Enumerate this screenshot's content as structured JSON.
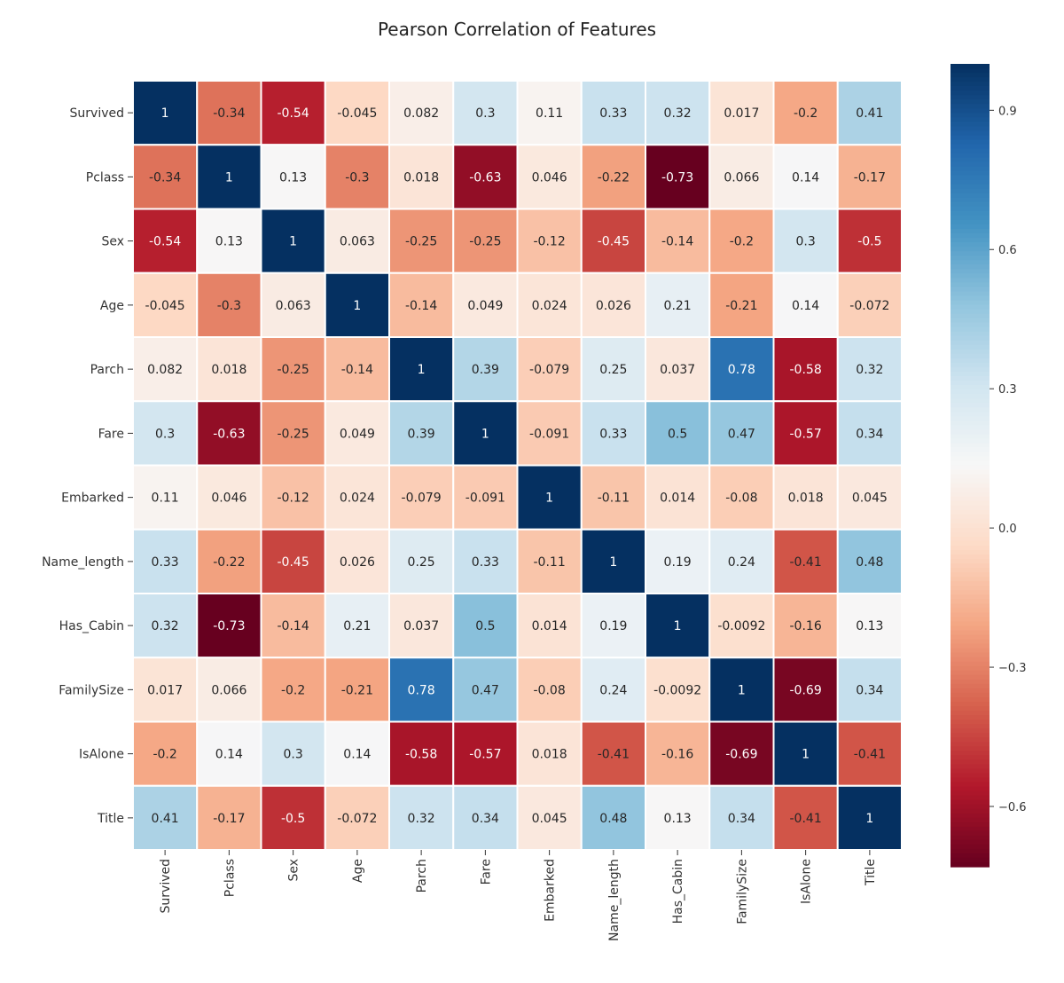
{
  "chart_data": {
    "type": "heatmap",
    "title": "Pearson Correlation of Features",
    "colormap": "RdBu",
    "vmin": -0.73,
    "vmax": 1.0,
    "annotated": true,
    "legend": "colorbar right",
    "colorbar_ticks": [
      "0.9",
      "0.6",
      "0.3",
      "0.0",
      "−0.3",
      "−0.6"
    ],
    "colorbar_tick_values": [
      0.9,
      0.6,
      0.3,
      0.0,
      -0.3,
      -0.6
    ],
    "labels": [
      "Survived",
      "Pclass",
      "Sex",
      "Age",
      "Parch",
      "Fare",
      "Embarked",
      "Name_length",
      "Has_Cabin",
      "FamilySize",
      "IsAlone",
      "Title"
    ],
    "values": [
      [
        "1",
        "-0.34",
        "-0.54",
        "-0.045",
        "0.082",
        "0.3",
        "0.11",
        "0.33",
        "0.32",
        "0.017",
        "-0.2",
        "0.41"
      ],
      [
        "-0.34",
        "1",
        "0.13",
        "-0.3",
        "0.018",
        "-0.63",
        "0.046",
        "-0.22",
        "-0.73",
        "0.066",
        "0.14",
        "-0.17"
      ],
      [
        "-0.54",
        "0.13",
        "1",
        "0.063",
        "-0.25",
        "-0.25",
        "-0.12",
        "-0.45",
        "-0.14",
        "-0.2",
        "0.3",
        "-0.5"
      ],
      [
        "-0.045",
        "-0.3",
        "0.063",
        "1",
        "-0.14",
        "0.049",
        "0.024",
        "0.026",
        "0.21",
        "-0.21",
        "0.14",
        "-0.072"
      ],
      [
        "0.082",
        "0.018",
        "-0.25",
        "-0.14",
        "1",
        "0.39",
        "-0.079",
        "0.25",
        "0.037",
        "0.78",
        "-0.58",
        "0.32"
      ],
      [
        "0.3",
        "-0.63",
        "-0.25",
        "0.049",
        "0.39",
        "1",
        "-0.091",
        "0.33",
        "0.5",
        "0.47",
        "-0.57",
        "0.34"
      ],
      [
        "0.11",
        "0.046",
        "-0.12",
        "0.024",
        "-0.079",
        "-0.091",
        "1",
        "-0.11",
        "0.014",
        "-0.08",
        "0.018",
        "0.045"
      ],
      [
        "0.33",
        "-0.22",
        "-0.45",
        "0.026",
        "0.25",
        "0.33",
        "-0.11",
        "1",
        "0.19",
        "0.24",
        "-0.41",
        "0.48"
      ],
      [
        "0.32",
        "-0.73",
        "-0.14",
        "0.21",
        "0.037",
        "0.5",
        "0.014",
        "0.19",
        "1",
        "-0.0092",
        "-0.16",
        "0.13"
      ],
      [
        "0.017",
        "0.066",
        "-0.2",
        "-0.21",
        "0.78",
        "0.47",
        "-0.08",
        "0.24",
        "-0.0092",
        "1",
        "-0.69",
        "0.34"
      ],
      [
        "-0.2",
        "0.14",
        "0.3",
        "0.14",
        "-0.58",
        "-0.57",
        "0.018",
        "-0.41",
        "-0.16",
        "-0.69",
        "1",
        "-0.41"
      ],
      [
        "0.41",
        "-0.17",
        "-0.5",
        "-0.072",
        "0.32",
        "0.34",
        "0.045",
        "0.48",
        "0.13",
        "0.34",
        "-0.41",
        "1"
      ]
    ]
  }
}
